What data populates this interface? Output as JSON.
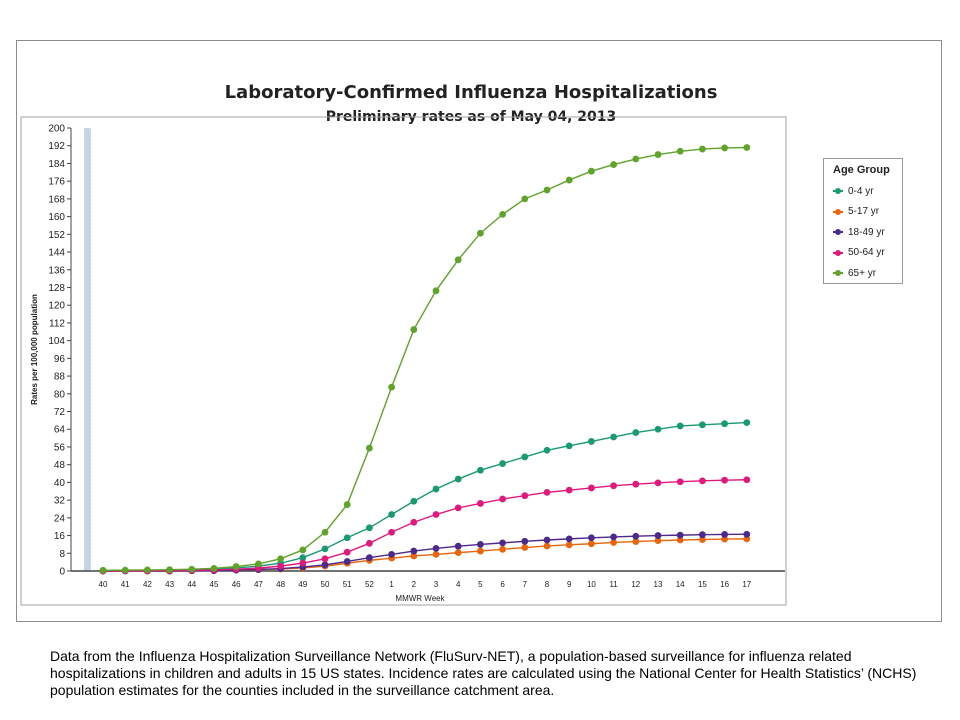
{
  "chart_data": {
    "type": "line",
    "title": "Laboratory-Confirmed Influenza Hospitalizations",
    "subtitle": "Preliminary rates as of May 04, 2013",
    "xlabel": "MMWR Week",
    "ylabel": "Rates per 100,000 population",
    "ylim": [
      0,
      200
    ],
    "yticks": [
      0,
      8,
      16,
      24,
      32,
      40,
      48,
      56,
      64,
      72,
      80,
      88,
      96,
      104,
      112,
      120,
      128,
      136,
      144,
      152,
      160,
      168,
      176,
      184,
      192,
      200
    ],
    "categories": [
      "40",
      "41",
      "42",
      "43",
      "44",
      "45",
      "46",
      "47",
      "48",
      "49",
      "50",
      "51",
      "52",
      "1",
      "2",
      "3",
      "4",
      "5",
      "6",
      "7",
      "8",
      "9",
      "10",
      "11",
      "12",
      "13",
      "14",
      "15",
      "16",
      "17"
    ],
    "legend_title": "Age Group",
    "legend_position": "right",
    "grid": false,
    "series": [
      {
        "name": "0-4 yr",
        "color": "#1a9a73",
        "values": [
          0,
          0.1,
          0.2,
          0.3,
          0.5,
          0.8,
          1.4,
          2.2,
          3.5,
          6.0,
          10.0,
          15.0,
          19.5,
          25.5,
          31.5,
          37.0,
          41.5,
          45.5,
          48.5,
          51.5,
          54.5,
          56.5,
          58.5,
          60.5,
          62.5,
          64.0,
          65.5,
          66.0,
          66.5,
          67.0
        ]
      },
      {
        "name": "5-17 yr",
        "color": "#e8660e",
        "values": [
          0,
          0,
          0,
          0,
          0.1,
          0.2,
          0.4,
          0.6,
          0.9,
          1.4,
          2.2,
          3.5,
          4.8,
          5.8,
          6.8,
          7.5,
          8.3,
          9.0,
          9.8,
          10.6,
          11.3,
          11.8,
          12.3,
          12.9,
          13.3,
          13.7,
          14.0,
          14.2,
          14.4,
          14.5
        ]
      },
      {
        "name": "18-49 yr",
        "color": "#4b2a8c",
        "values": [
          0,
          0,
          0,
          0,
          0.1,
          0.2,
          0.4,
          0.7,
          1.1,
          1.8,
          2.8,
          4.3,
          6.0,
          7.5,
          9.0,
          10.2,
          11.2,
          12.0,
          12.7,
          13.4,
          14.0,
          14.5,
          15.0,
          15.4,
          15.7,
          16.0,
          16.2,
          16.4,
          16.5,
          16.6
        ]
      },
      {
        "name": "50-64 yr",
        "color": "#e0197d",
        "values": [
          0,
          0.1,
          0.1,
          0.2,
          0.3,
          0.5,
          0.8,
          1.3,
          2.2,
          3.6,
          5.5,
          8.5,
          12.5,
          17.5,
          22.0,
          25.5,
          28.5,
          30.5,
          32.5,
          34.0,
          35.5,
          36.5,
          37.5,
          38.5,
          39.2,
          39.8,
          40.3,
          40.7,
          41.0,
          41.2
        ]
      },
      {
        "name": "65+ yr",
        "color": "#5fa32a",
        "values": [
          0.3,
          0.4,
          0.5,
          0.6,
          0.8,
          1.2,
          2.0,
          3.2,
          5.5,
          9.5,
          17.5,
          30.0,
          55.5,
          83.0,
          109.0,
          126.5,
          140.5,
          152.5,
          161.0,
          168.0,
          172.0,
          176.5,
          180.5,
          183.5,
          186.0,
          188.0,
          189.5,
          190.5,
          191.0,
          191.2
        ]
      }
    ]
  },
  "caption": "Data from the Influenza Hospitalization Surveillance Network (FluSurv-NET), a population-based surveillance for influenza related hospitalizations in children and adults in 15 US states.  Incidence rates are calculated using the National Center for Health Statistics’ (NCHS) population estimates for the counties included in the surveillance catchment area."
}
